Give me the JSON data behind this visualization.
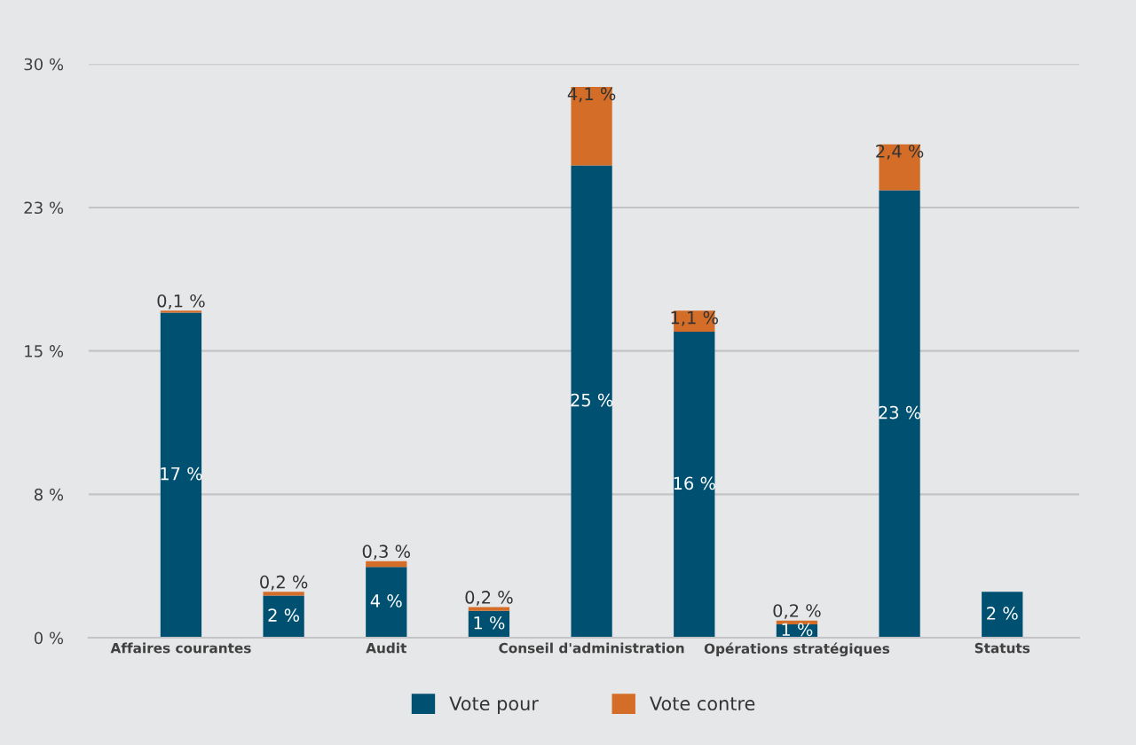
{
  "chart_data": {
    "type": "bar",
    "stacked": true,
    "categories": [
      "Affaires courantes",
      null,
      "Audit",
      null,
      "Conseil d'administration",
      null,
      "Opérations stratégiques",
      null,
      "Statuts"
    ],
    "series": [
      {
        "name": "Vote pour",
        "color": "#005072",
        "values": [
          17.0,
          2.2,
          3.7,
          1.4,
          24.7,
          16.0,
          0.7,
          23.4,
          2.4
        ],
        "value_labels": [
          "17 %",
          "2 %",
          "4 %",
          "1 %",
          "25 %",
          "16 %",
          "1 %",
          "23 %",
          "2 %"
        ]
      },
      {
        "name": "Vote contre",
        "color": "#d36d27",
        "values": [
          0.1,
          0.2,
          0.3,
          0.2,
          4.1,
          1.1,
          0.2,
          2.4,
          null
        ],
        "value_labels": [
          "0,1 %",
          "0,2 %",
          "0,3 %",
          "0,2 %",
          "4,1 %",
          "1,1 %",
          "0,2 %",
          "2,4 %",
          null
        ]
      }
    ],
    "ylim": [
      0,
      30
    ],
    "yticks": [
      {
        "value": 0,
        "label": "0 %"
      },
      {
        "value": 7.5,
        "label": "8 %"
      },
      {
        "value": 15,
        "label": "15 %"
      },
      {
        "value": 22.5,
        "label": "23 %"
      },
      {
        "value": 30,
        "label": "30 %"
      }
    ],
    "grid": "y",
    "legend": "bottom"
  }
}
